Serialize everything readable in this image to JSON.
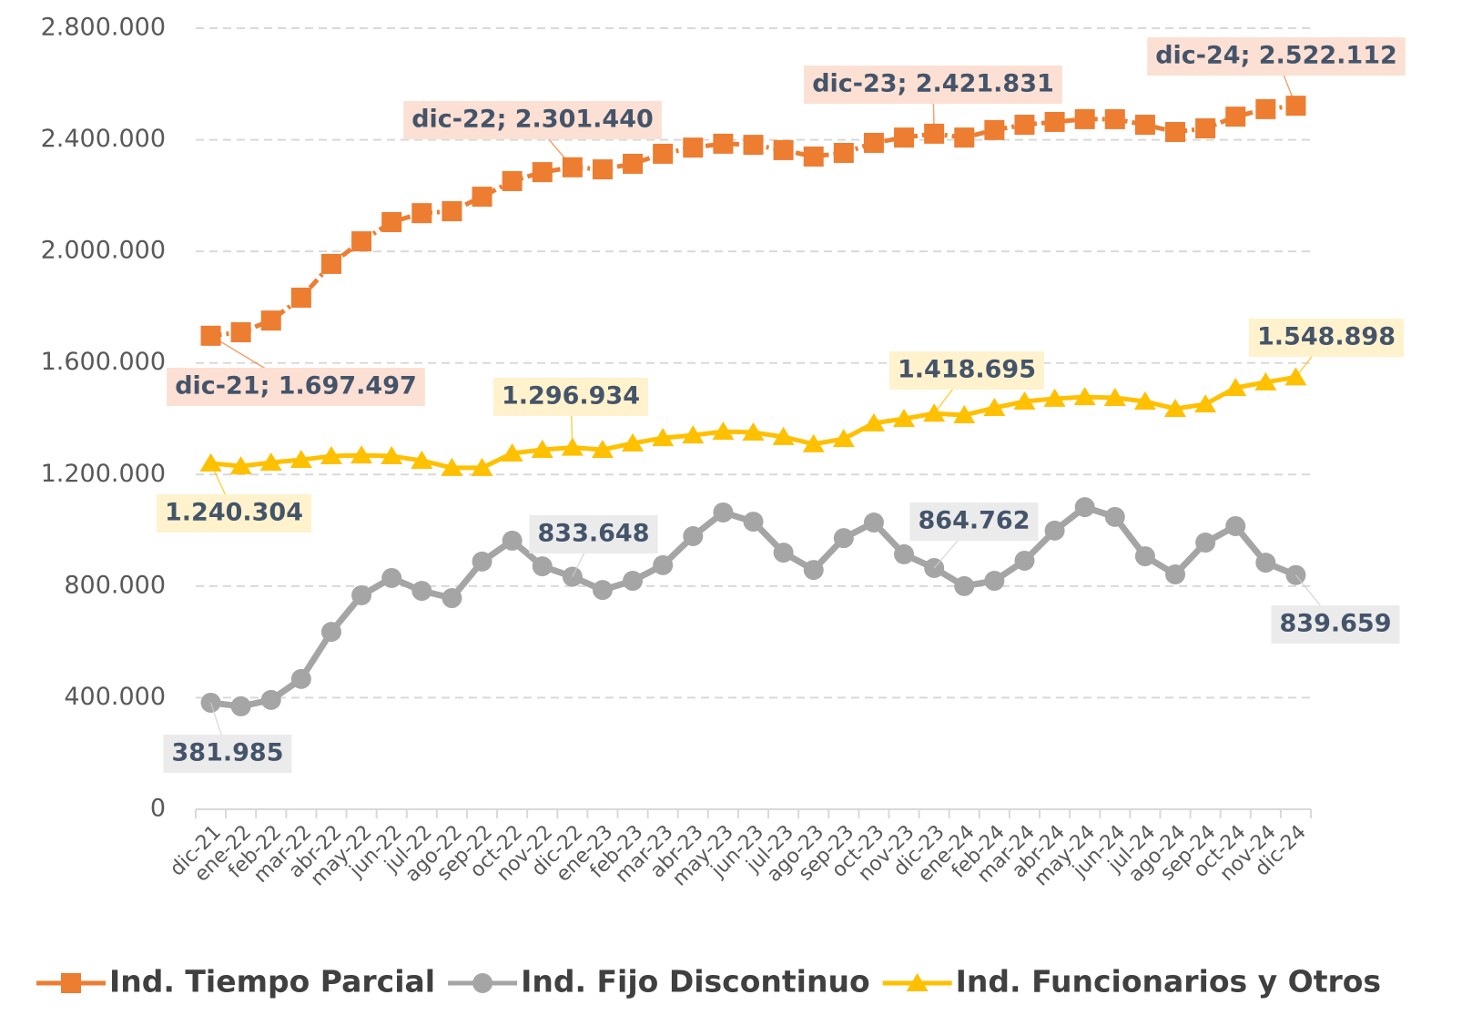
{
  "chart_data": {
    "type": "line",
    "categories": [
      "dic-21",
      "ene-22",
      "feb-22",
      "mar-22",
      "abr-22",
      "may-22",
      "jun-22",
      "jul-22",
      "ago-22",
      "sep-22",
      "oct-22",
      "nov-22",
      "dic-22",
      "ene-23",
      "feb-23",
      "mar-23",
      "abr-23",
      "may-23",
      "jun-23",
      "jul-23",
      "ago-23",
      "sep-23",
      "oct-23",
      "nov-23",
      "dic-23",
      "ene-24",
      "feb-24",
      "mar-24",
      "abr-24",
      "may-24",
      "jun-24",
      "jul-24",
      "ago-24",
      "sep-24",
      "oct-24",
      "nov-24",
      "dic-24"
    ],
    "ylim": [
      0,
      2800000
    ],
    "yticks": [
      0,
      {
        "value": 400000,
        "label": "400.000"
      },
      {
        "value": 800000,
        "label": "800.000"
      },
      {
        "value": 1200000,
        "label": "1.200.000"
      },
      {
        "value": 1600000,
        "label": "1.600.000"
      },
      {
        "value": 2000000,
        "label": "2.000.000"
      },
      {
        "value": 2400000,
        "label": "2.400.000"
      },
      {
        "value": 2800000,
        "label": "2.800.000"
      }
    ],
    "grid": true,
    "legend": "bottom",
    "series": [
      {
        "name": "Ind. Tiempo Parcial",
        "color": "#ed7d31",
        "marker": "square",
        "values": [
          1697497,
          1710000,
          1752000,
          1834000,
          1955000,
          2036000,
          2105000,
          2137000,
          2144000,
          2196000,
          2252000,
          2284000,
          2301440,
          2294000,
          2314000,
          2350000,
          2372000,
          2386000,
          2382000,
          2363000,
          2340000,
          2353000,
          2389000,
          2408000,
          2421831,
          2408000,
          2435000,
          2454000,
          2464000,
          2474000,
          2474000,
          2454000,
          2428000,
          2441000,
          2483000,
          2510000,
          2522112
        ],
        "value_labels": [
          "dic-21; 1.697.497",
          null,
          null,
          null,
          null,
          null,
          null,
          null,
          null,
          null,
          null,
          null,
          "dic-22; 2.301.440",
          null,
          null,
          null,
          null,
          null,
          null,
          null,
          null,
          null,
          null,
          null,
          "dic-23; 2.421.831",
          null,
          null,
          null,
          null,
          null,
          null,
          null,
          null,
          null,
          null,
          null,
          "dic-24; 2.522.112"
        ]
      },
      {
        "name": "Ind. Fijo Discontinuo",
        "color": "#a5a5a5",
        "marker": "circle",
        "values": [
          381985,
          369000,
          392000,
          467000,
          636000,
          767000,
          829000,
          783000,
          757000,
          888000,
          963000,
          871000,
          833648,
          786000,
          819000,
          875000,
          979000,
          1064000,
          1031000,
          920000,
          858000,
          972000,
          1028000,
          914000,
          864762,
          800000,
          819000,
          891000,
          999000,
          1083000,
          1048000,
          907000,
          842000,
          956000,
          1015000,
          884000,
          839659
        ],
        "value_labels": [
          "381.985",
          null,
          null,
          null,
          null,
          null,
          null,
          null,
          null,
          null,
          null,
          null,
          "833.648",
          null,
          null,
          null,
          null,
          null,
          null,
          null,
          null,
          null,
          null,
          null,
          "864.762",
          null,
          null,
          null,
          null,
          null,
          null,
          null,
          null,
          null,
          null,
          null,
          "839.659"
        ]
      },
      {
        "name": "Ind. Funcionarios y Otros",
        "color": "#ffc000",
        "marker": "triangle",
        "values": [
          1240304,
          1230000,
          1243000,
          1253000,
          1266000,
          1269000,
          1266000,
          1250000,
          1224000,
          1224000,
          1276000,
          1289000,
          1296934,
          1289000,
          1312000,
          1331000,
          1341000,
          1354000,
          1351000,
          1335000,
          1309000,
          1328000,
          1384000,
          1400000,
          1418695,
          1413000,
          1439000,
          1462000,
          1472000,
          1478000,
          1475000,
          1462000,
          1436000,
          1452000,
          1511000,
          1531000,
          1548898
        ],
        "value_labels": [
          "1.240.304",
          null,
          null,
          null,
          null,
          null,
          null,
          null,
          null,
          null,
          null,
          null,
          "1.296.934",
          null,
          null,
          null,
          null,
          null,
          null,
          null,
          null,
          null,
          null,
          null,
          "1.418.695",
          null,
          null,
          null,
          null,
          null,
          null,
          null,
          null,
          null,
          null,
          null,
          "1.548.898"
        ]
      }
    ]
  }
}
